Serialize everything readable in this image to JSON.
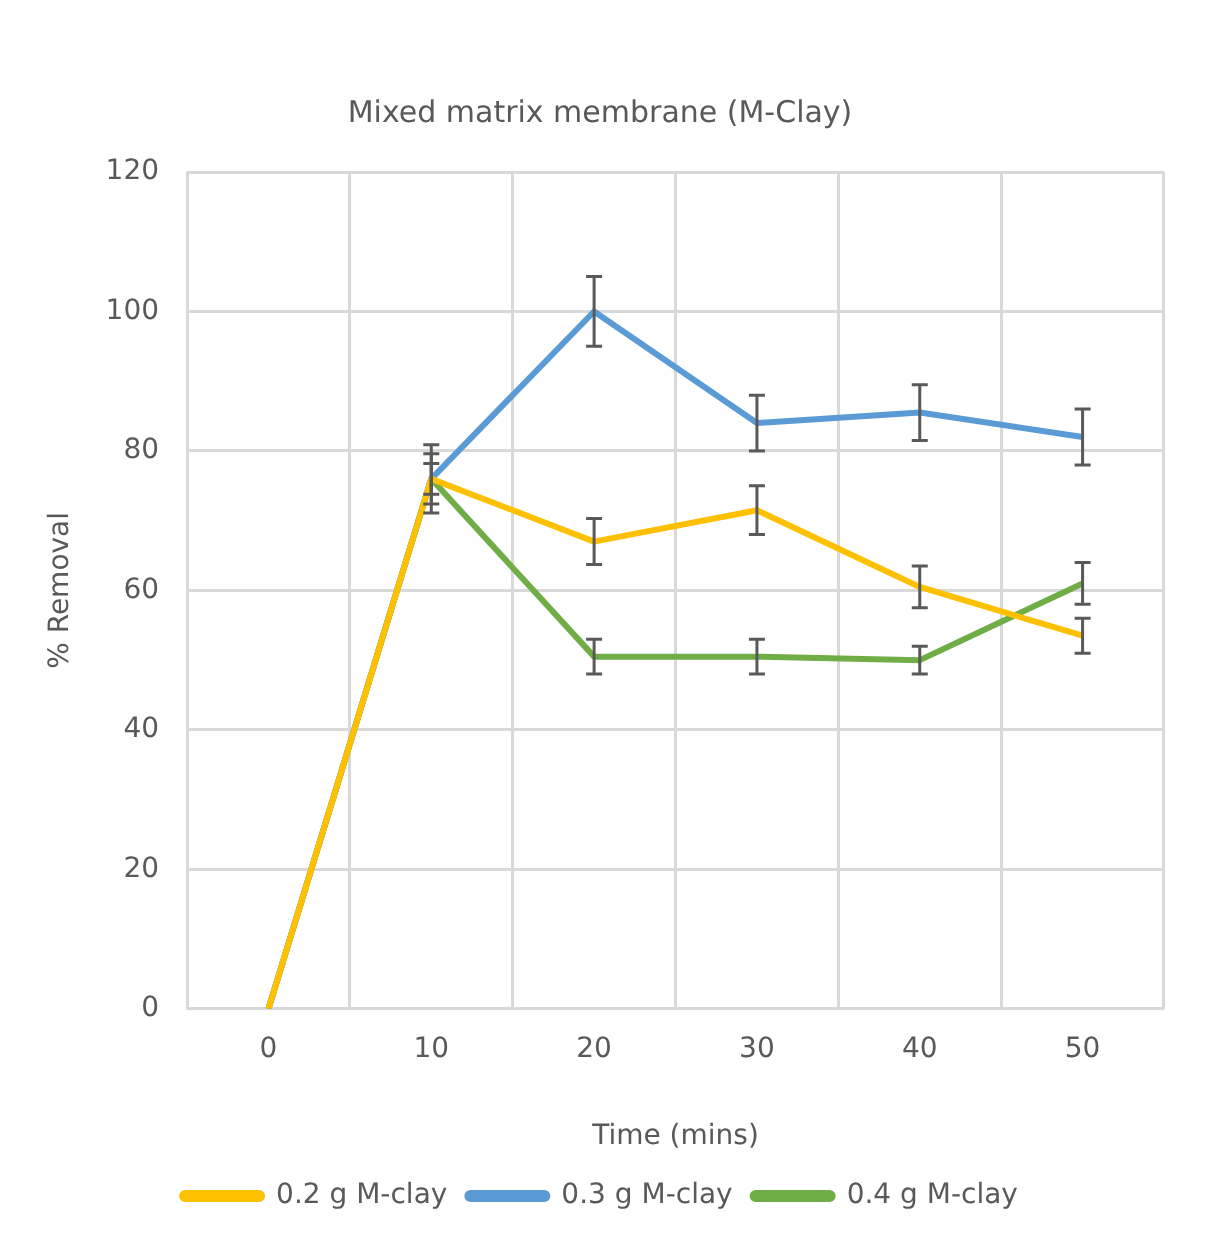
{
  "chart_data": {
    "type": "line",
    "title": "Mixed matrix membrane (M-Clay)",
    "xlabel": "Time (mins)",
    "ylabel": "% Removal",
    "categories": [
      "0",
      "10",
      "20",
      "30",
      "40",
      "50"
    ],
    "series": [
      {
        "name": "0.2 g M-clay",
        "color": "#ffc000",
        "values": [
          0,
          76,
          67,
          71.5,
          60.5,
          53.5
        ],
        "errors": [
          null,
          4.9,
          3.3,
          3.5,
          3,
          2.5
        ]
      },
      {
        "name": "0.3 g M-clay",
        "color": "#5b9bd5",
        "values": [
          0,
          76,
          100,
          84,
          85.5,
          82
        ],
        "errors": [
          null,
          3.6,
          5,
          4,
          4,
          4
        ]
      },
      {
        "name": "0.4 g M-clay",
        "color": "#70ad47",
        "values": [
          0,
          76,
          50.5,
          50.5,
          50,
          61
        ],
        "errors": [
          null,
          2.2,
          2.5,
          2.5,
          2,
          3
        ]
      }
    ],
    "ylim": [
      0,
      120
    ],
    "yticks": [
      0,
      20,
      40,
      60,
      80,
      100,
      120
    ],
    "grid": true,
    "legend": "bottom",
    "marker": "none",
    "line_style": "solid"
  }
}
